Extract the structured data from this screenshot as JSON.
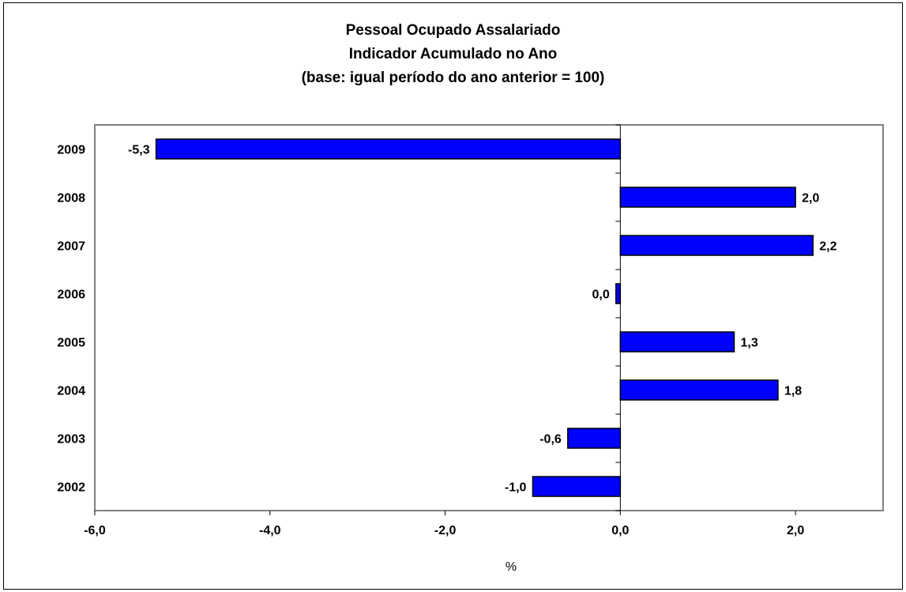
{
  "chart_data": {
    "type": "bar",
    "orientation": "horizontal",
    "title": "Pessoal Ocupado Assalariado",
    "subtitle": "Indicador Acumulado no Ano",
    "subtitle2": "(base: igual período do ano anterior = 100)",
    "xlabel": "%",
    "ylabel": "",
    "categories": [
      "2009",
      "2008",
      "2007",
      "2006",
      "2005",
      "2004",
      "2003",
      "2002"
    ],
    "values": [
      -5.3,
      2.0,
      2.2,
      -0.05,
      1.3,
      1.8,
      -0.6,
      -1.0
    ],
    "data_labels": [
      "-5,3",
      "2,0",
      "2,2",
      "0,0",
      "1,3",
      "1,8",
      "-0,6",
      "-1,0"
    ],
    "xlim": [
      -6.0,
      3.0
    ],
    "x_ticks": [
      -6,
      -4,
      -2,
      0,
      2
    ],
    "x_tick_labels": [
      "-6,0",
      "-4,0",
      "-2,0",
      "0,0",
      "2,0"
    ],
    "grid": false,
    "legend": "none",
    "bar_color": "#0000FF",
    "plot_border_color": "#808080"
  }
}
